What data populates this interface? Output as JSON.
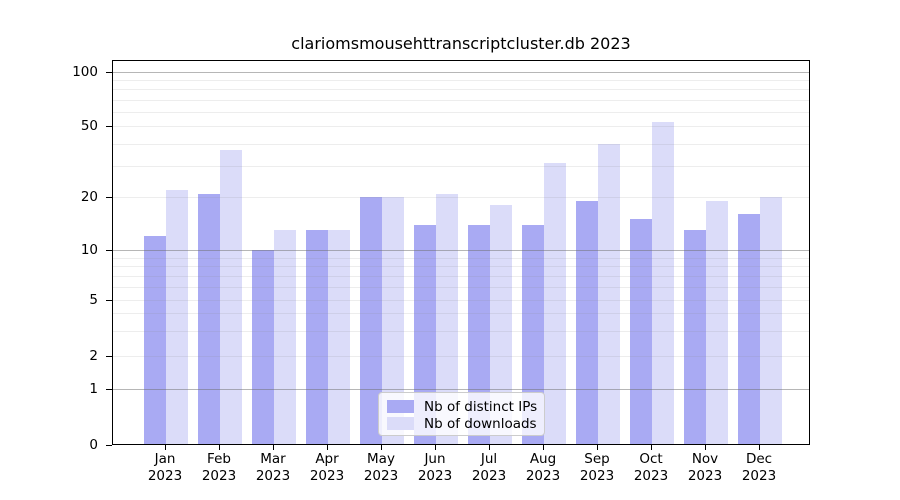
{
  "title": "clariomsmousehttranscriptcluster.db 2023",
  "chart_data": {
    "type": "bar",
    "title": "clariomsmousehttranscriptcluster.db 2023",
    "categories": [
      "Jan",
      "Feb",
      "Mar",
      "Apr",
      "May",
      "Jun",
      "Jul",
      "Aug",
      "Sep",
      "Oct",
      "Nov",
      "Dec"
    ],
    "x_tick_second_line": "2023",
    "series": [
      {
        "name": "Nb of distinct IPs",
        "color": "#a9aaf3",
        "values": [
          12,
          21,
          10,
          13,
          20,
          14,
          14,
          14,
          19,
          15,
          13,
          16
        ]
      },
      {
        "name": "Nb of downloads",
        "color": "#dbdcf9",
        "values": [
          22,
          37,
          13,
          13,
          20,
          21,
          18,
          31,
          40,
          53,
          19,
          20
        ]
      }
    ],
    "xlabel": "",
    "ylabel": "",
    "y_axis_scale": "symlog",
    "ylim": [
      0,
      115
    ],
    "y_ticks": [
      100,
      50,
      20,
      10,
      5,
      2,
      1,
      0
    ],
    "major_gridlines": [
      1,
      10,
      100
    ],
    "minor_gridlines": [
      2,
      3,
      4,
      5,
      6,
      7,
      8,
      9,
      20,
      30,
      40,
      50,
      60,
      70,
      80,
      90
    ],
    "grid": "on, drawn above bars",
    "legend_position": "bottom-center inside plot",
    "colors": {
      "bar_distinct_ips": "#a9aaf3",
      "bar_downloads": "#dbdcf9",
      "axis": "#000000",
      "major_grid": "#6e6e6e",
      "minor_grid": "#8c8c8c",
      "legend_border": "#cccccc",
      "background": "#ffffff"
    }
  }
}
